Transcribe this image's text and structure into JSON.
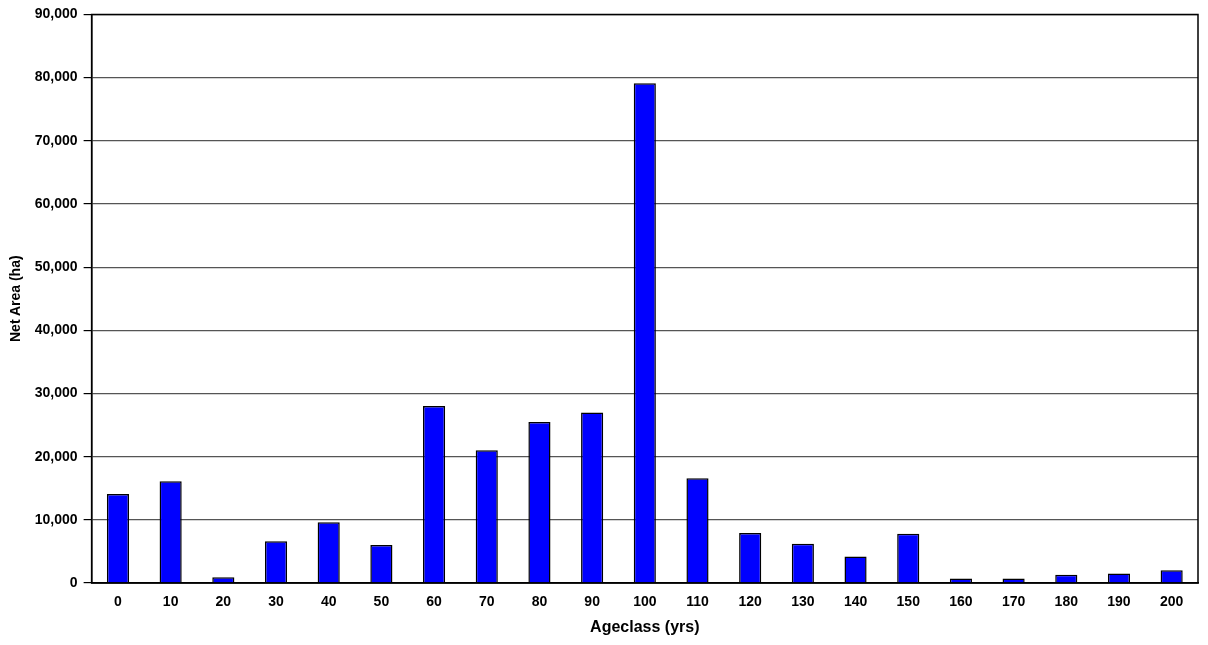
{
  "chart_data": {
    "type": "bar",
    "xlabel": "Ageclass (yrs)",
    "ylabel": "Net Area (ha)",
    "categories": [
      "0",
      "10",
      "20",
      "30",
      "40",
      "50",
      "60",
      "70",
      "80",
      "90",
      "100",
      "110",
      "120",
      "130",
      "140",
      "150",
      "160",
      "170",
      "180",
      "190",
      "200"
    ],
    "values": [
      14100,
      16100,
      900,
      6600,
      9600,
      6000,
      28000,
      21000,
      25500,
      27000,
      79100,
      16600,
      7900,
      6200,
      4200,
      7800,
      700,
      700,
      1300,
      1500,
      2000
    ],
    "color": "#0000ff",
    "ylim": [
      0,
      90000
    ],
    "yticks": [
      {
        "value": 0,
        "label": "0"
      },
      {
        "value": 10000,
        "label": "10,000"
      },
      {
        "value": 20000,
        "label": "20,000"
      },
      {
        "value": 30000,
        "label": "30,000"
      },
      {
        "value": 40000,
        "label": "40,000"
      },
      {
        "value": 50000,
        "label": "50,000"
      },
      {
        "value": 60000,
        "label": "60,000"
      },
      {
        "value": 70000,
        "label": "70,000"
      },
      {
        "value": 80000,
        "label": "80,000"
      },
      {
        "value": 90000,
        "label": "90,000"
      }
    ],
    "grid": "y",
    "legend": false
  }
}
